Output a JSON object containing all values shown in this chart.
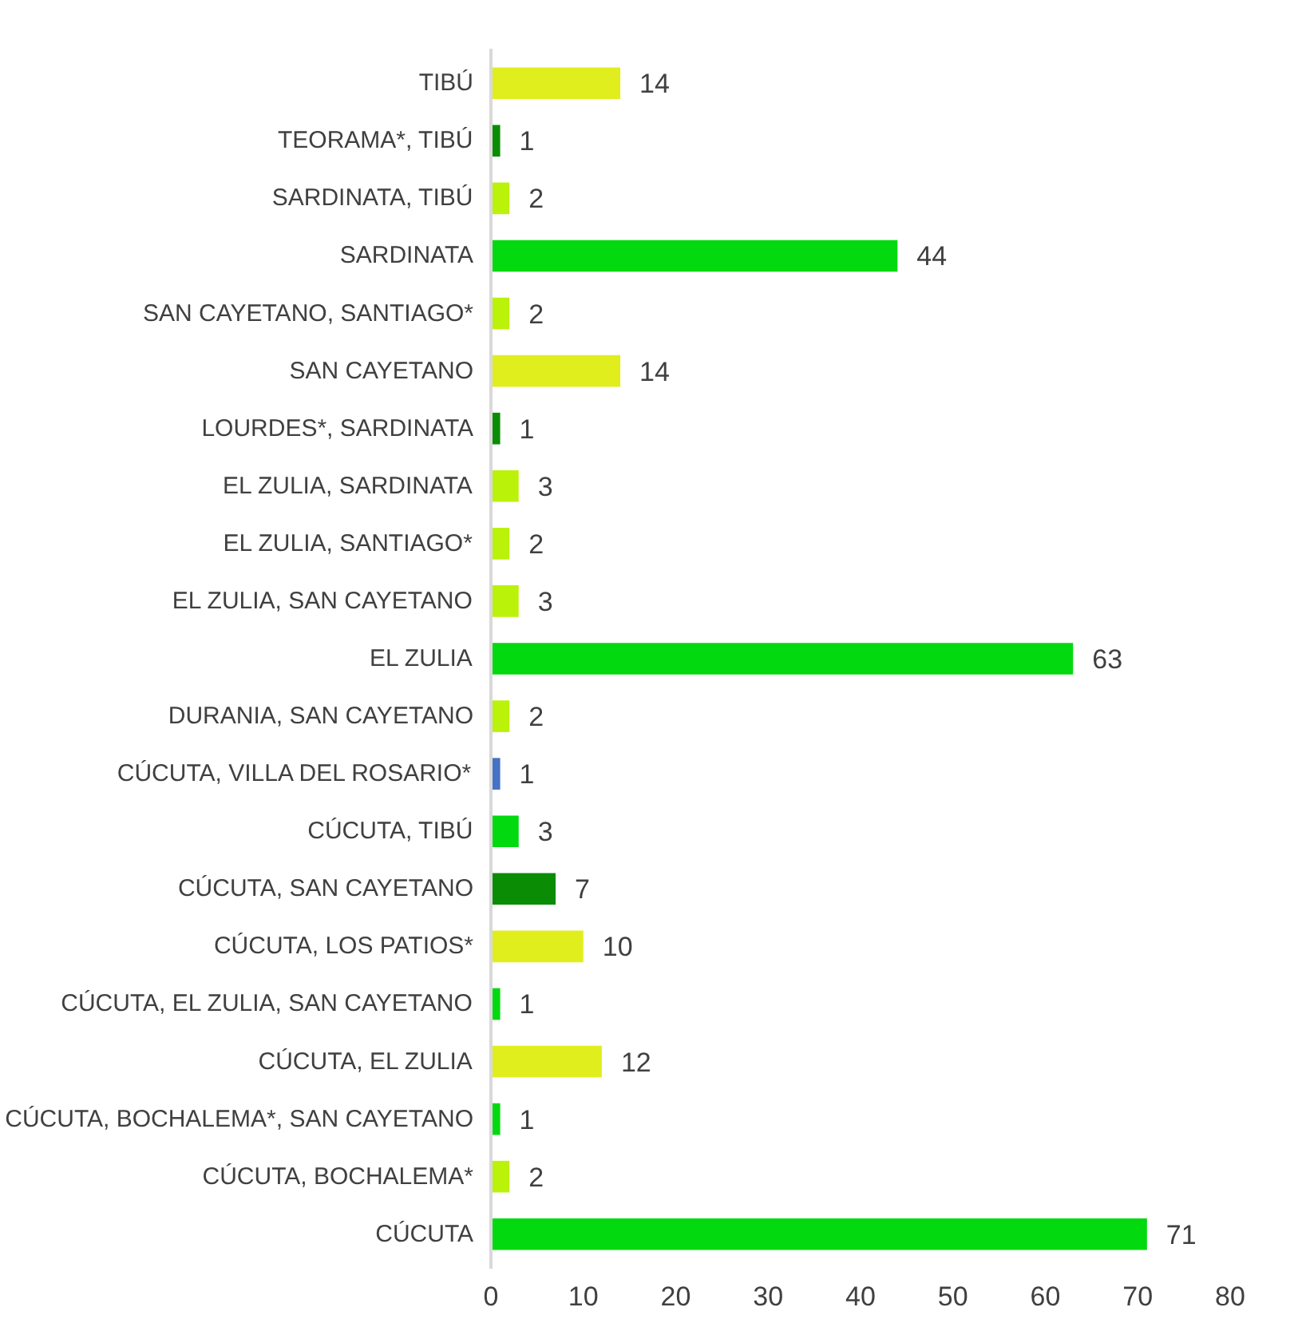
{
  "chart_data": {
    "type": "bar",
    "orientation": "horizontal",
    "categories": [
      "TIBÚ",
      "TEORAMA*, TIBÚ",
      "SARDINATA, TIBÚ",
      "SARDINATA",
      "SAN CAYETANO, SANTIAGO*",
      "SAN CAYETANO",
      "LOURDES*, SARDINATA",
      "EL ZULIA, SARDINATA",
      "EL ZULIA, SANTIAGO*",
      "EL ZULIA, SAN CAYETANO",
      "EL ZULIA",
      "DURANIA, SAN CAYETANO",
      "CÚCUTA, VILLA DEL ROSARIO*",
      "CÚCUTA, TIBÚ",
      "CÚCUTA, SAN CAYETANO",
      "CÚCUTA, LOS PATIOS*",
      "CÚCUTA, EL ZULIA, SAN CAYETANO",
      "CÚCUTA, EL ZULIA",
      "CÚCUTA, BOCHALEMA*, SAN CAYETANO",
      "CÚCUTA, BOCHALEMA*",
      "CÚCUTA"
    ],
    "values": [
      14,
      1,
      2,
      44,
      2,
      14,
      1,
      3,
      2,
      3,
      63,
      2,
      1,
      3,
      7,
      10,
      1,
      12,
      1,
      2,
      71
    ],
    "colors": [
      "#e0ee1e",
      "#0a8c05",
      "#bbf20a",
      "#02d90e",
      "#bbf20a",
      "#e0ee1e",
      "#0a8c05",
      "#bbf20a",
      "#bbf20a",
      "#bbf20a",
      "#02d90e",
      "#bbf20a",
      "#4472c4",
      "#02d90e",
      "#0a8c05",
      "#e0ee1e",
      "#02d90e",
      "#e0ee1e",
      "#02d90e",
      "#bbf20a",
      "#02d90e"
    ],
    "xlim": [
      0,
      80
    ],
    "xticks": [
      0,
      10,
      20,
      30,
      40,
      50,
      60,
      70,
      80
    ],
    "data_labels": true,
    "grid": false
  }
}
